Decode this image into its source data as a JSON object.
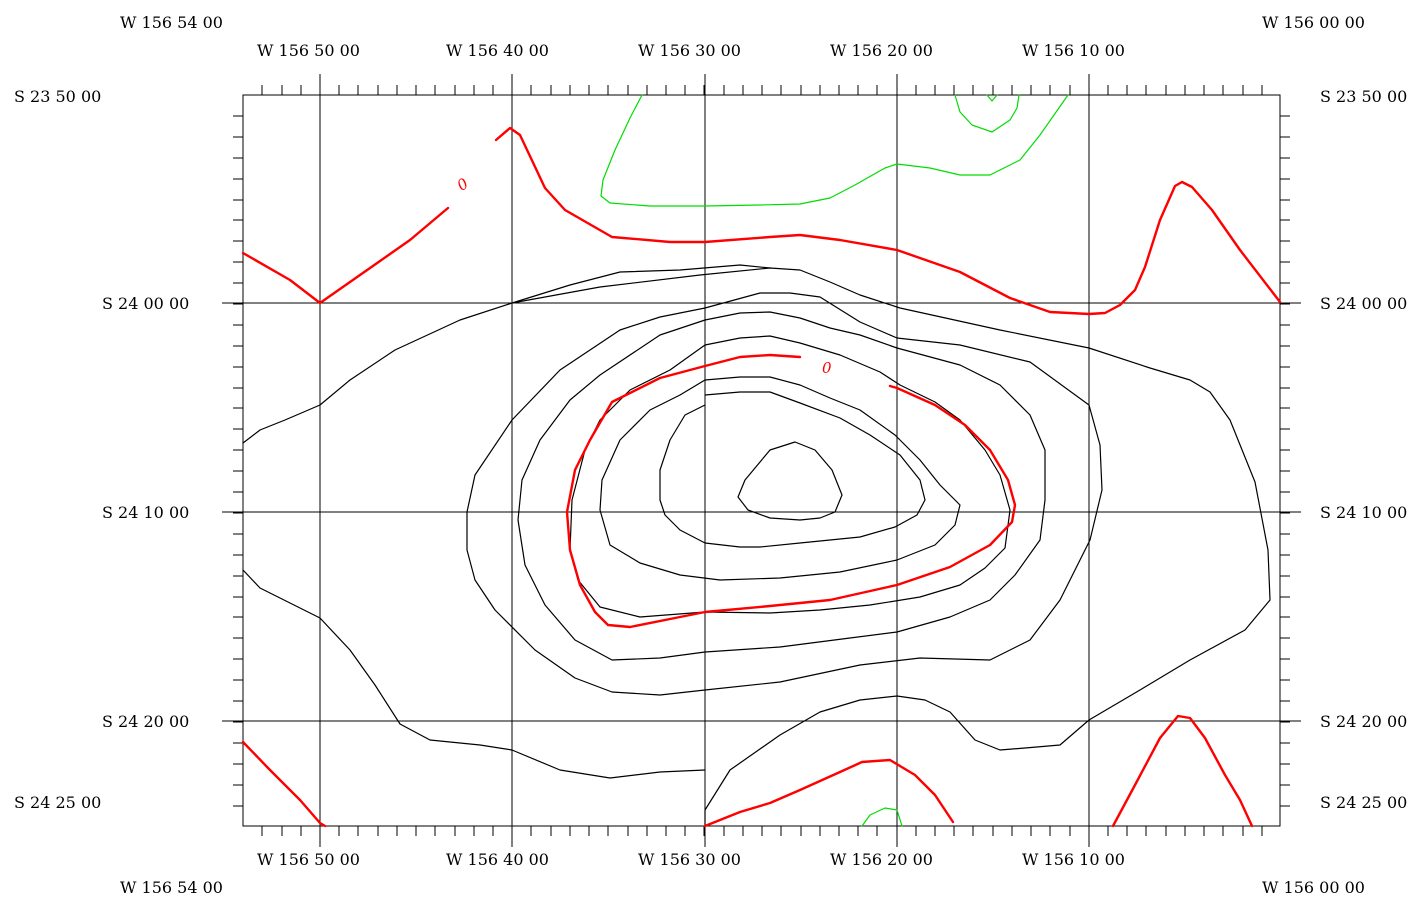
{
  "corners": {
    "top_left": "W 156 54 00",
    "top_right": "W 156 00 00",
    "bottom_left": "W 156 54 00",
    "bottom_right": "W 156 00 00"
  },
  "lon_labels": [
    "W 156 50 00",
    "W 156 40 00",
    "W 156 30 00",
    "W 156 20 00",
    "W 156 10 00"
  ],
  "lat_labels": [
    "S 23 50 00",
    "S 24 00 00",
    "S 24 10 00",
    "S 24 20 00",
    "S 24 25 00"
  ],
  "contour_labels": [
    "0",
    "0"
  ],
  "colors": {
    "zero_contour": "#ff0000",
    "negative_contour": "#00dd00",
    "positive_contour": "#000000",
    "grid": "#000000"
  }
}
